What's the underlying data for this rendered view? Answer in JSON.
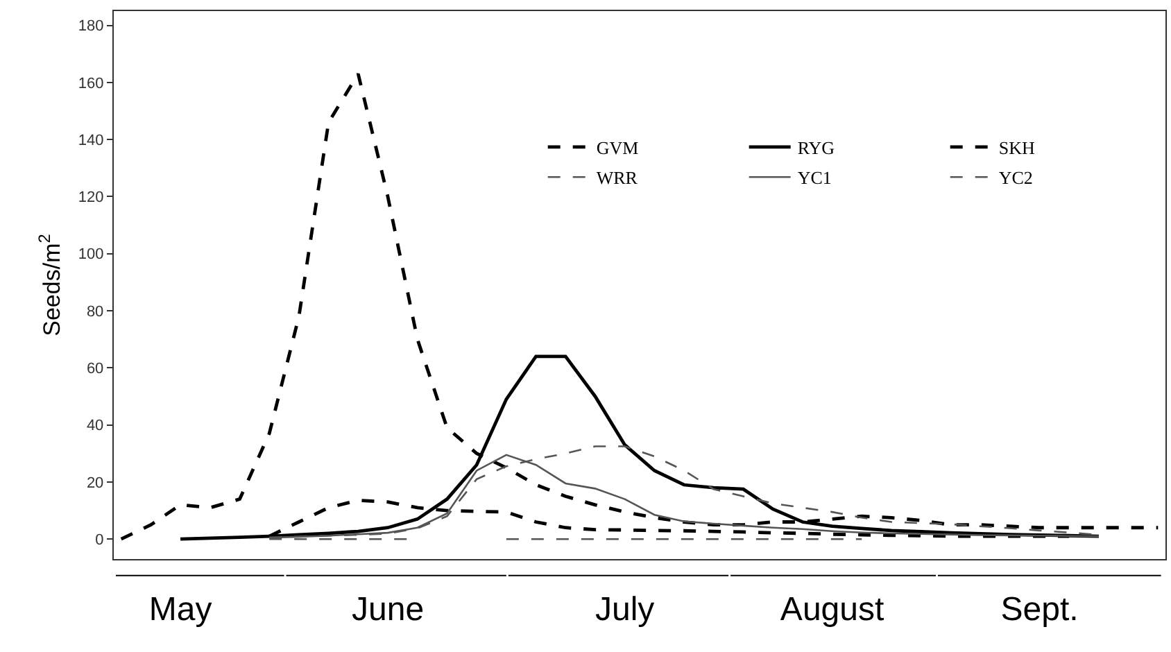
{
  "chart_data": {
    "type": "line",
    "ylabel": "Seeds/m$^{2}$",
    "categories": [
      null,
      null,
      "May",
      null,
      null,
      null,
      null,
      null,
      null,
      "June",
      null,
      null,
      null,
      null,
      null,
      null,
      null,
      "July",
      null,
      null,
      null,
      null,
      null,
      null,
      "August",
      null,
      null,
      null,
      null,
      null,
      null,
      "Sept.",
      null,
      null,
      null,
      null
    ],
    "ylim": [
      -7,
      185
    ],
    "yticks": [
      0,
      20,
      40,
      60,
      80,
      100,
      120,
      140,
      160,
      180
    ],
    "grid": false,
    "legend": "top right",
    "marker": "none",
    "series": [
      {
        "name": "GVM",
        "color": "#000000",
        "line_style": "dashed",
        "values": [
          null,
          null,
          null,
          null,
          null,
          1,
          6,
          11,
          13.6,
          13,
          11,
          10,
          9.7,
          9.5,
          6,
          4,
          3.3,
          3.2,
          3,
          2.9,
          2.7,
          2.5,
          2.2,
          2,
          1.7,
          1.5,
          1.3,
          1.2,
          1,
          1,
          1,
          1,
          1,
          null,
          null,
          null
        ]
      },
      {
        "name": "RYG",
        "color": "#000000",
        "line_style": "solid",
        "values": [
          null,
          null,
          0,
          0.3,
          0.6,
          1,
          1.5,
          2,
          2.7,
          4,
          7,
          14,
          26,
          49,
          64,
          64,
          50,
          33,
          24,
          19,
          18,
          17.5,
          10.5,
          6,
          4.5,
          3.7,
          3,
          2.6,
          2.2,
          1.9,
          1.6,
          1.4,
          1.2,
          1,
          null,
          null
        ]
      },
      {
        "name": "SKH",
        "color": "#000000",
        "line_style": "dashed",
        "values": [
          0,
          5,
          12,
          11,
          14,
          37,
          78,
          146,
          163,
          120,
          70,
          39,
          30,
          25,
          19,
          15,
          12,
          9.5,
          7.5,
          6,
          5,
          5,
          6,
          6,
          7,
          8,
          7.5,
          6.5,
          5,
          5,
          4.5,
          4,
          4,
          4,
          4,
          4
        ]
      },
      {
        "name": "WRR",
        "color": "#555555",
        "line_style": "dashed",
        "values": [
          null,
          null,
          null,
          null,
          null,
          0,
          0,
          0,
          0,
          0,
          0,
          null,
          null,
          0,
          0,
          0,
          0,
          0,
          0,
          0,
          0,
          0,
          0,
          0,
          0,
          0,
          null,
          null,
          null,
          null,
          null,
          null,
          null,
          null,
          null,
          null
        ]
      },
      {
        "name": "YC1",
        "color": "#555555",
        "line_style": "solid",
        "values": [
          null,
          null,
          null,
          null,
          null,
          0.5,
          0.8,
          1.2,
          1.7,
          2.2,
          4,
          9,
          24,
          29.5,
          26,
          19.5,
          17.7,
          14,
          8.5,
          6.2,
          5.4,
          4.7,
          4,
          3.5,
          2.8,
          2.3,
          2,
          1.8,
          1.6,
          1.4,
          1.3,
          1.2,
          1.1,
          1,
          null,
          null
        ]
      },
      {
        "name": "YC2",
        "color": "#555555",
        "line_style": "dashed",
        "values": [
          null,
          null,
          null,
          null,
          null,
          0.5,
          0.9,
          1.2,
          1.5,
          1.9,
          3.8,
          8,
          21,
          25.5,
          28,
          30,
          32.5,
          32.5,
          29,
          24,
          17.5,
          15,
          12.5,
          11,
          9.5,
          7.5,
          6,
          5.6,
          5.2,
          4.5,
          3.8,
          3,
          2.3,
          1.5,
          null,
          null
        ]
      }
    ]
  }
}
